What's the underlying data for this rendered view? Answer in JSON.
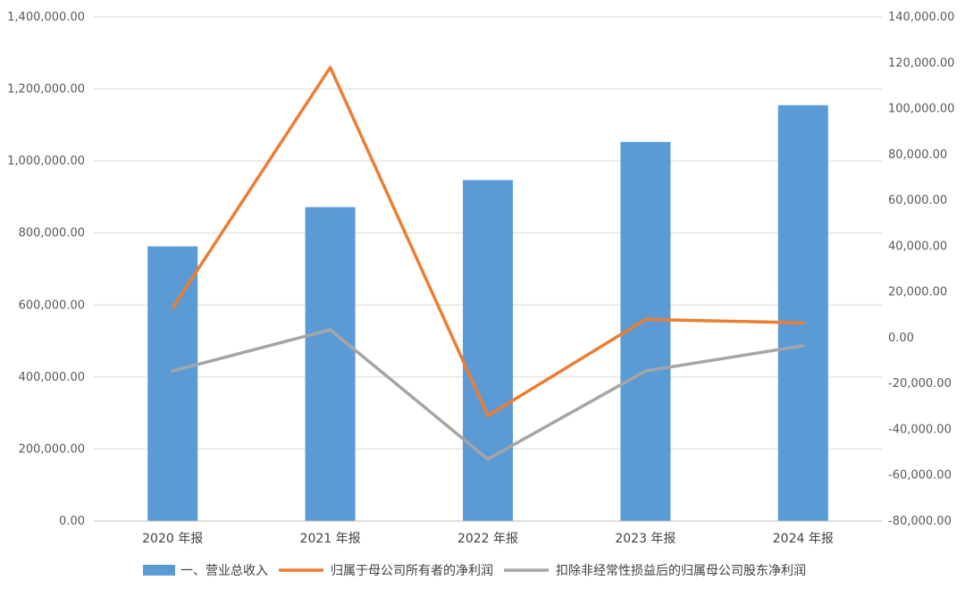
{
  "chart_data": {
    "type": "bar",
    "categories": [
      "2020 年报",
      "2021 年报",
      "2022 年报",
      "2023 年报",
      "2024 年报"
    ],
    "series": [
      {
        "name": "一、营业总收入",
        "type": "bar",
        "axis": "left",
        "color": "#5B9BD5",
        "values": [
          763000,
          872000,
          947000,
          1053000,
          1155000
        ]
      },
      {
        "name": "归属于母公司所有者的净利润",
        "type": "line",
        "axis": "right",
        "color": "#ED7D31",
        "values": [
          13000,
          118000,
          -34000,
          8000,
          6500
        ]
      },
      {
        "name": "扣除非经常性损益后的归属母公司股东净利润",
        "type": "line",
        "axis": "right",
        "color": "#A5A5A5",
        "values": [
          -14500,
          3500,
          -53000,
          -14500,
          -3500
        ]
      }
    ],
    "y_left": {
      "ylim": [
        0,
        1400000
      ],
      "ticks": [
        "0.00",
        "200,000.00",
        "400,000.00",
        "600,000.00",
        "800,000.00",
        "1,000,000.00",
        "1,200,000.00",
        "1,400,000.00"
      ]
    },
    "y_right": {
      "ylim": [
        -80000,
        140000
      ],
      "ticks": [
        "-80,000.00",
        "-60,000.00",
        "-40,000.00",
        "-20,000.00",
        "0.00",
        "20,000.00",
        "40,000.00",
        "60,000.00",
        "80,000.00",
        "100,000.00",
        "120,000.00",
        "140,000.00"
      ]
    },
    "grid": true,
    "legend_position": "bottom"
  }
}
